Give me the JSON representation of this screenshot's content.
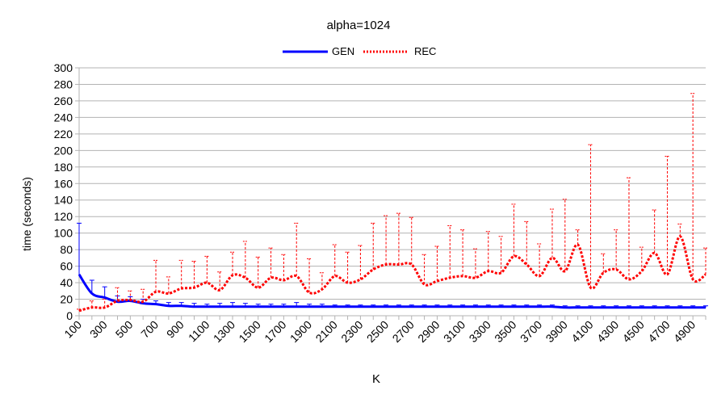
{
  "chart_data": {
    "type": "line",
    "title": "alpha=1024",
    "xlabel": "K",
    "ylabel": "time (seconds)",
    "ylim": [
      0,
      300
    ],
    "y_ticks": [
      0,
      20,
      40,
      60,
      80,
      100,
      120,
      140,
      160,
      180,
      200,
      220,
      240,
      260,
      280,
      300
    ],
    "x": [
      100,
      200,
      300,
      400,
      500,
      600,
      700,
      800,
      900,
      1000,
      1100,
      1200,
      1300,
      1400,
      1500,
      1600,
      1700,
      1800,
      1900,
      2000,
      2100,
      2200,
      2300,
      2400,
      2500,
      2600,
      2700,
      2800,
      2900,
      3000,
      3100,
      3200,
      3300,
      3400,
      3500,
      3600,
      3700,
      3800,
      3900,
      4000,
      4100,
      4200,
      4300,
      4400,
      4500,
      4600,
      4700,
      4800,
      4900,
      5000
    ],
    "x_tick_labels": [
      "100",
      "300",
      "500",
      "700",
      "900",
      "1100",
      "1300",
      "1500",
      "1700",
      "1900",
      "2100",
      "2300",
      "2500",
      "2700",
      "2900",
      "3100",
      "3300",
      "3500",
      "3700",
      "3900",
      "4100",
      "4300",
      "4500",
      "4700",
      "4900"
    ],
    "grid": "horizontal",
    "legend_position": "top",
    "series": [
      {
        "name": "GEN",
        "color": "#0000ff",
        "style": "solid",
        "values": [
          50,
          27,
          22,
          17,
          18,
          15,
          14,
          12,
          12,
          11,
          11,
          11,
          11,
          11,
          11,
          11,
          11,
          11,
          11,
          11,
          11,
          11,
          11,
          11,
          11,
          11,
          11,
          11,
          11,
          11,
          11,
          11,
          11,
          11,
          11,
          11,
          11,
          11,
          10,
          10,
          10,
          10,
          10,
          10,
          10,
          10,
          10,
          10,
          10,
          10
        ],
        "error_upper": [
          112,
          43,
          35,
          24,
          23,
          20,
          18,
          16,
          16,
          15,
          14,
          15,
          16,
          15,
          14,
          14,
          14,
          16,
          14,
          14,
          13,
          13,
          13,
          13,
          13,
          13,
          13,
          13,
          13,
          13,
          13,
          13,
          13,
          13,
          13,
          13,
          13,
          13,
          12,
          12,
          12,
          12,
          12,
          12,
          12,
          12,
          12,
          12,
          12,
          12
        ]
      },
      {
        "name": "REC",
        "color": "#ff0000",
        "style": "dotted",
        "values": [
          6,
          10,
          10,
          18,
          19,
          17,
          29,
          27,
          33,
          34,
          40,
          31,
          49,
          46,
          34,
          46,
          43,
          48,
          28,
          32,
          48,
          40,
          44,
          56,
          62,
          62,
          62,
          38,
          42,
          46,
          48,
          46,
          54,
          52,
          72,
          62,
          48,
          70,
          54,
          86,
          34,
          52,
          56,
          44,
          54,
          76,
          50,
          96,
          44,
          50
        ],
        "error_upper": [
          8,
          18,
          20,
          34,
          30,
          32,
          67,
          47,
          67,
          66,
          72,
          53,
          77,
          90,
          71,
          82,
          74,
          112,
          69,
          52,
          86,
          77,
          85,
          112,
          121,
          124,
          119,
          74,
          84,
          109,
          104,
          81,
          102,
          96,
          135,
          114,
          87,
          129,
          141,
          104,
          207,
          75,
          104,
          167,
          83,
          128,
          193,
          111,
          269,
          82
        ]
      }
    ]
  }
}
